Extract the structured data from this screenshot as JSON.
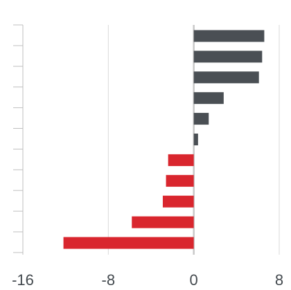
{
  "chart_data": {
    "type": "bar",
    "orientation": "horizontal",
    "title": "",
    "xlabel": "",
    "ylabel": "",
    "xlim": [
      -16,
      8
    ],
    "x_ticks": [
      -16,
      -8,
      0,
      8
    ],
    "x_tick_labels": [
      "-16",
      "-8",
      "0",
      "8"
    ],
    "grid": "vertical",
    "legend": "none",
    "categories": [
      "",
      "",
      "",
      "",
      "",
      "",
      "",
      "",
      "",
      "",
      ""
    ],
    "values": [
      6.6,
      6.4,
      6.1,
      2.8,
      1.4,
      0.4,
      -2.4,
      -2.6,
      -2.9,
      -5.8,
      -12.2
    ],
    "colors": {
      "positive": "#4a4f54",
      "negative": "#d9262e",
      "gridline": "#d9d9d9",
      "zero_line": "#c8c8c8",
      "axis": "#bfbfbf",
      "text": "#444a4f"
    }
  }
}
